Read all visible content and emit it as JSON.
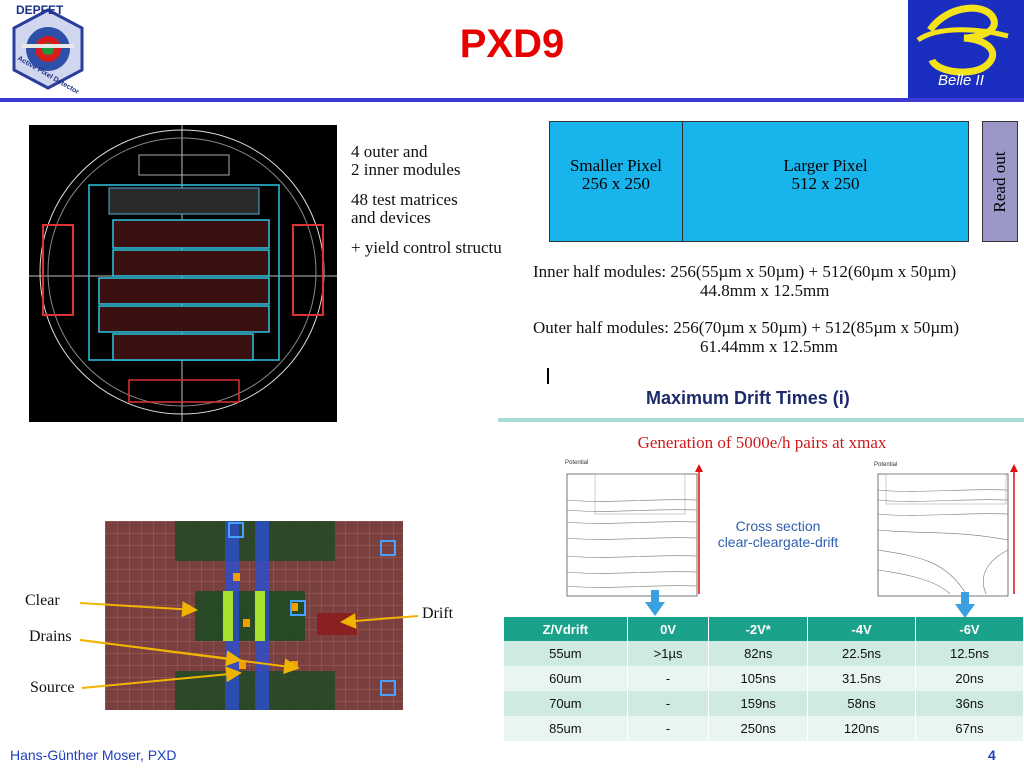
{
  "header": {
    "title": "PXD9",
    "left_logo": {
      "name": "depfet-logo",
      "top_text": "DEPFET",
      "bottom_text": "Active Pixel Detector"
    },
    "right_logo": {
      "name": "belle-ii-logo",
      "text": "Belle II"
    }
  },
  "wafer_notes": [
    "4 outer and",
    "2 inner modules",
    "48 test matrices",
    "and devices",
    "+ yield control structu"
  ],
  "pixel_diagram": {
    "smaller": {
      "label": "Smaller Pixel",
      "dims": "256 x 250"
    },
    "larger": {
      "label": "Larger Pixel",
      "dims": "512 x 250"
    },
    "readout": "Read out"
  },
  "modules": {
    "inner_line1": "Inner half modules: 256(55µm x 50µm) + 512(60µm x 50µm)",
    "inner_line2": "44.8mm x 12.5mm",
    "outer_line1": "Outer half modules: 256(70µm x 50µm) + 512(85µm x 50µm)",
    "outer_line2": "61.44mm x 12.5mm"
  },
  "drift": {
    "heading": "Maximum Drift Times (i)",
    "generation": "Generation of 5000e/h pairs at xmax",
    "cross_section_1": "Cross section",
    "cross_section_2": "clear-cleargate-drift",
    "plot_label": "Potential"
  },
  "layout_labels": {
    "clear": "Clear",
    "drains": "Drains",
    "source": "Source",
    "drift": "Drift"
  },
  "table": {
    "headers": [
      "Z/Vdrift",
      "0V",
      "-2V*",
      "-4V",
      "-6V"
    ],
    "rows": [
      [
        "55um",
        ">1µs",
        "82ns",
        "22.5ns",
        "12.5ns"
      ],
      [
        "60um",
        "-",
        "105ns",
        "31.5ns",
        "20ns"
      ],
      [
        "70um",
        "-",
        "159ns",
        "58ns",
        "36ns"
      ],
      [
        "85um",
        "-",
        "250ns",
        "120ns",
        "67ns"
      ]
    ]
  },
  "footer": {
    "author": "Hans-Günther Moser, PXD",
    "page": "4"
  },
  "colors": {
    "title_red": "#e60000",
    "rule_blue": "#3a3ad0",
    "pixel_cyan": "#18b4ec",
    "readout_lavender": "#9b97c8",
    "table_teal": "#1ba28b"
  }
}
